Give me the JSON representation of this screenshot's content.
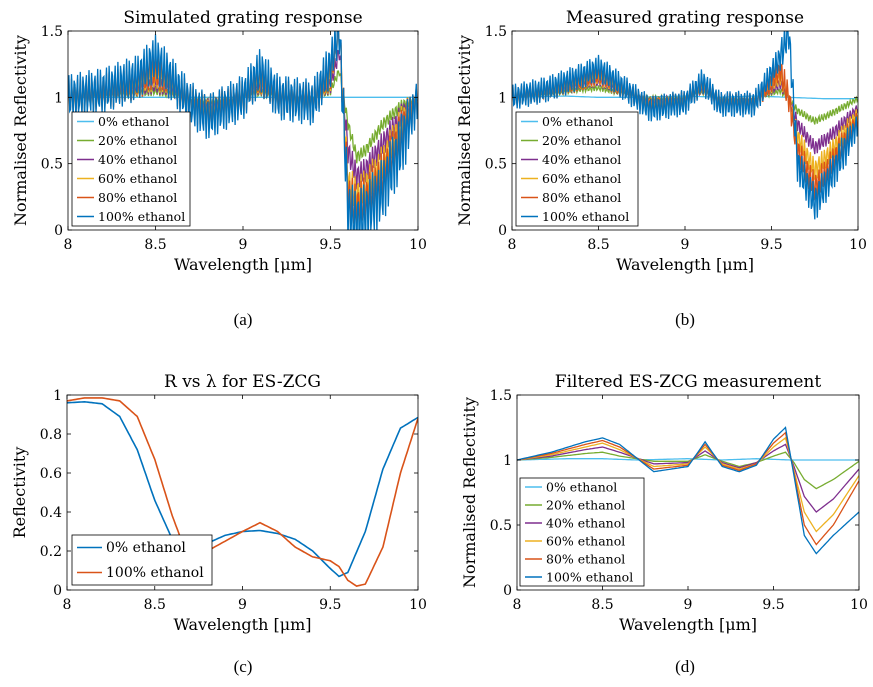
{
  "colors": {
    "s0": "#4DBEEE",
    "s20": "#77AC30",
    "s40": "#7E2F8E",
    "s60": "#EDB120",
    "s80": "#D95319",
    "s100": "#0072BD"
  },
  "chart_data": [
    {
      "type": "line",
      "id": "a",
      "caption": "(a)",
      "title": "Simulated grating response",
      "xlabel": "Wavelength [μm]",
      "ylabel": "Normalised Reflectivity",
      "xlim": [
        8,
        10
      ],
      "ylim": [
        0,
        1.5
      ],
      "xticks": [
        "8",
        "8.5",
        "9",
        "9.5",
        "10"
      ],
      "yticks": [
        "0",
        "0.5",
        "1",
        "1.5"
      ],
      "legend_position": "bottom-left",
      "series": [
        {
          "name": "0% ethanol",
          "color": "s0",
          "x": [
            8,
            8.2,
            8.4,
            8.6,
            8.8,
            9,
            9.2,
            9.4,
            9.6,
            9.8,
            10
          ],
          "y": [
            1,
            1,
            1,
            1,
            1,
            1,
            1,
            1,
            1,
            1,
            1
          ]
        },
        {
          "name": "20% ethanol",
          "color": "s20",
          "x": [
            8,
            8.2,
            8.4,
            8.5,
            8.6,
            8.7,
            8.8,
            9,
            9.1,
            9.2,
            9.4,
            9.5,
            9.55,
            9.6,
            9.65,
            9.7,
            9.8,
            9.9,
            10
          ],
          "y": [
            1,
            1.01,
            1.03,
            1.05,
            1.02,
            0.99,
            0.97,
            1,
            1.04,
            1.0,
            1.0,
            1.05,
            1.2,
            0.8,
            0.55,
            0.6,
            0.8,
            0.93,
            1
          ]
        },
        {
          "name": "40% ethanol",
          "color": "s40",
          "x": [
            8,
            8.2,
            8.4,
            8.5,
            8.6,
            8.7,
            8.8,
            9,
            9.1,
            9.2,
            9.4,
            9.5,
            9.55,
            9.6,
            9.65,
            9.7,
            9.8,
            9.9,
            10
          ],
          "y": [
            1,
            1.02,
            1.06,
            1.1,
            1.05,
            0.98,
            0.94,
            1,
            1.08,
            1.0,
            0.99,
            1.1,
            1.35,
            0.6,
            0.4,
            0.45,
            0.65,
            0.85,
            1
          ]
        },
        {
          "name": "60% ethanol",
          "color": "s60",
          "x": [
            8,
            8.2,
            8.4,
            8.5,
            8.6,
            8.7,
            8.8,
            9,
            9.1,
            9.2,
            9.4,
            9.5,
            9.55,
            9.6,
            9.65,
            9.7,
            9.8,
            9.9,
            10
          ],
          "y": [
            1,
            1.03,
            1.09,
            1.16,
            1.08,
            0.97,
            0.91,
            1,
            1.12,
            1.0,
            0.98,
            1.15,
            1.5,
            0.35,
            0.25,
            0.32,
            0.5,
            0.78,
            1
          ]
        },
        {
          "name": "80% ethanol",
          "color": "s80",
          "x": [
            8,
            8.2,
            8.4,
            8.5,
            8.6,
            8.7,
            8.8,
            9,
            9.1,
            9.2,
            9.4,
            9.5,
            9.55,
            9.6,
            9.65,
            9.7,
            9.8,
            9.9,
            10
          ],
          "y": [
            1,
            1.04,
            1.12,
            1.22,
            1.1,
            0.96,
            0.88,
            1,
            1.16,
            1.0,
            0.97,
            1.2,
            1.5,
            0.25,
            0.15,
            0.22,
            0.4,
            0.7,
            1
          ]
        },
        {
          "name": "100% ethanol",
          "color": "s100",
          "x": [
            8,
            8.2,
            8.4,
            8.5,
            8.6,
            8.7,
            8.8,
            9,
            9.1,
            9.2,
            9.4,
            9.5,
            9.55,
            9.6,
            9.65,
            9.7,
            9.8,
            9.9,
            10
          ],
          "y": [
            1,
            1.05,
            1.15,
            1.3,
            1.12,
            0.95,
            0.85,
            1,
            1.2,
            1.0,
            0.96,
            1.25,
            1.5,
            0.15,
            0.05,
            0.12,
            0.3,
            0.62,
            1
          ]
        }
      ]
    },
    {
      "type": "line",
      "id": "b",
      "caption": "(b)",
      "title": "Measured grating response",
      "xlabel": "Wavelength [μm]",
      "ylabel": "Normalised Reflectivity",
      "xlim": [
        8,
        10
      ],
      "ylim": [
        0,
        1.5
      ],
      "xticks": [
        "8",
        "8.5",
        "9",
        "9.5",
        "10"
      ],
      "yticks": [
        "0",
        "0.5",
        "1",
        "1.5"
      ],
      "legend_position": "bottom-left",
      "series": [
        {
          "name": "0% ethanol",
          "color": "s0",
          "x": [
            8,
            8.3,
            8.5,
            8.7,
            9,
            9.2,
            9.4,
            9.6,
            9.8,
            10
          ],
          "y": [
            1,
            1.01,
            1.0,
            1.0,
            1.01,
            1.0,
            1.01,
            1.0,
            0.99,
            0.99
          ]
        },
        {
          "name": "20% ethanol",
          "color": "s20",
          "x": [
            8,
            8.2,
            8.4,
            8.5,
            8.6,
            8.8,
            9,
            9.1,
            9.2,
            9.4,
            9.55,
            9.6,
            9.65,
            9.75,
            9.85,
            10
          ],
          "y": [
            1,
            1.02,
            1.06,
            1.07,
            1.04,
            0.99,
            1.0,
            1.04,
            0.99,
            0.99,
            1.05,
            1.0,
            0.9,
            0.82,
            0.88,
            0.99
          ]
        },
        {
          "name": "40% ethanol",
          "color": "s40",
          "x": [
            8,
            8.2,
            8.4,
            8.5,
            8.6,
            8.8,
            9,
            9.1,
            9.2,
            9.4,
            9.55,
            9.6,
            9.65,
            9.75,
            9.85,
            10
          ],
          "y": [
            1,
            1.03,
            1.09,
            1.12,
            1.06,
            0.97,
            0.99,
            1.06,
            0.98,
            0.98,
            1.1,
            1.0,
            0.8,
            0.62,
            0.72,
            0.92
          ]
        },
        {
          "name": "60% ethanol",
          "color": "s60",
          "x": [
            8,
            8.2,
            8.4,
            8.5,
            8.6,
            8.8,
            9,
            9.1,
            9.2,
            9.4,
            9.55,
            9.6,
            9.65,
            9.75,
            9.85,
            10
          ],
          "y": [
            1,
            1.04,
            1.11,
            1.15,
            1.08,
            0.95,
            0.98,
            1.08,
            0.97,
            0.97,
            1.15,
            1.0,
            0.7,
            0.45,
            0.6,
            0.88
          ]
        },
        {
          "name": "80% ethanol",
          "color": "s80",
          "x": [
            8,
            8.2,
            8.4,
            8.5,
            8.6,
            8.8,
            9,
            9.1,
            9.2,
            9.4,
            9.55,
            9.6,
            9.65,
            9.75,
            9.85,
            10
          ],
          "y": [
            1,
            1.05,
            1.13,
            1.18,
            1.1,
            0.93,
            0.97,
            1.1,
            0.96,
            0.96,
            1.2,
            1.0,
            0.6,
            0.32,
            0.5,
            0.84
          ]
        },
        {
          "name": "100% ethanol",
          "color": "s100",
          "x": [
            8,
            8.2,
            8.4,
            8.5,
            8.6,
            8.8,
            9,
            9.1,
            9.2,
            9.4,
            9.55,
            9.6,
            9.65,
            9.75,
            9.85,
            10
          ],
          "y": [
            1,
            1.06,
            1.16,
            1.22,
            1.12,
            0.91,
            0.96,
            1.12,
            0.95,
            0.95,
            1.3,
            1.5,
            0.5,
            0.2,
            0.42,
            0.8
          ]
        }
      ]
    },
    {
      "type": "line",
      "id": "c",
      "caption": "(c)",
      "title": "R vs λ for ES-ZCG",
      "xlabel": "Wavelength [μm]",
      "ylabel": "Reflectivity",
      "xlim": [
        8,
        10
      ],
      "ylim": [
        0,
        1
      ],
      "xticks": [
        "8",
        "8.5",
        "9",
        "9.5",
        "10"
      ],
      "yticks": [
        "0",
        "0.2",
        "0.4",
        "0.6",
        "0.8",
        "1"
      ],
      "legend_position": "bottom-left",
      "series": [
        {
          "name": "0% ethanol",
          "color": "s100",
          "x": [
            8,
            8.1,
            8.2,
            8.3,
            8.4,
            8.5,
            8.6,
            8.7,
            8.8,
            8.9,
            9,
            9.1,
            9.2,
            9.3,
            9.4,
            9.5,
            9.55,
            9.6,
            9.7,
            9.8,
            9.9,
            10
          ],
          "y": [
            0.96,
            0.965,
            0.955,
            0.89,
            0.72,
            0.46,
            0.26,
            0.21,
            0.24,
            0.28,
            0.3,
            0.305,
            0.29,
            0.26,
            0.2,
            0.11,
            0.07,
            0.09,
            0.3,
            0.62,
            0.83,
            0.885
          ]
        },
        {
          "name": "100% ethanol",
          "color": "s80",
          "x": [
            8,
            8.1,
            8.2,
            8.3,
            8.4,
            8.5,
            8.6,
            8.65,
            8.7,
            8.8,
            8.9,
            9,
            9.1,
            9.2,
            9.3,
            9.4,
            9.5,
            9.55,
            9.6,
            9.65,
            9.7,
            9.8,
            9.9,
            10
          ],
          "y": [
            0.97,
            0.985,
            0.985,
            0.97,
            0.89,
            0.67,
            0.38,
            0.26,
            0.2,
            0.2,
            0.25,
            0.3,
            0.345,
            0.3,
            0.22,
            0.17,
            0.15,
            0.12,
            0.05,
            0.02,
            0.03,
            0.22,
            0.6,
            0.88
          ]
        }
      ]
    },
    {
      "type": "line",
      "id": "d",
      "caption": "(d)",
      "title": "Filtered ES-ZCG measurement",
      "xlabel": "Wavelength [μm]",
      "ylabel": "Normalised Reflectivity",
      "xlim": [
        8,
        10
      ],
      "ylim": [
        0,
        1.5
      ],
      "xticks": [
        "8",
        "8.5",
        "9",
        "9.5",
        "10"
      ],
      "yticks": [
        "0",
        "0.5",
        "1",
        "1.5"
      ],
      "legend_position": "bottom-left",
      "series": [
        {
          "name": "0% ethanol",
          "color": "s0",
          "x": [
            8,
            8.3,
            8.5,
            8.7,
            9,
            9.2,
            9.4,
            9.6,
            9.8,
            10
          ],
          "y": [
            1,
            1.01,
            1.01,
            1.0,
            1.01,
            1.0,
            1.01,
            1.0,
            1.0,
            1.0
          ]
        },
        {
          "name": "20% ethanol",
          "color": "s20",
          "x": [
            8,
            8.2,
            8.4,
            8.5,
            8.6,
            8.8,
            9,
            9.1,
            9.2,
            9.3,
            9.4,
            9.5,
            9.57,
            9.62,
            9.68,
            9.75,
            9.85,
            10
          ],
          "y": [
            1,
            1.02,
            1.05,
            1.06,
            1.03,
            0.99,
            0.99,
            1.04,
            0.99,
            0.95,
            0.98,
            1.03,
            1.06,
            0.98,
            0.85,
            0.78,
            0.85,
            0.99
          ]
        },
        {
          "name": "40% ethanol",
          "color": "s40",
          "x": [
            8,
            8.2,
            8.4,
            8.5,
            8.6,
            8.8,
            9,
            9.1,
            9.2,
            9.3,
            9.4,
            9.5,
            9.57,
            9.62,
            9.68,
            9.75,
            9.85,
            10
          ],
          "y": [
            1,
            1.03,
            1.08,
            1.1,
            1.06,
            0.97,
            0.98,
            1.07,
            0.98,
            0.94,
            0.98,
            1.07,
            1.12,
            0.95,
            0.72,
            0.6,
            0.7,
            0.93
          ]
        },
        {
          "name": "60% ethanol",
          "color": "s60",
          "x": [
            8,
            8.2,
            8.4,
            8.5,
            8.6,
            8.8,
            9,
            9.1,
            9.2,
            9.3,
            9.4,
            9.5,
            9.57,
            9.62,
            9.68,
            9.75,
            9.85,
            10
          ],
          "y": [
            1,
            1.04,
            1.1,
            1.13,
            1.08,
            0.95,
            0.97,
            1.1,
            0.97,
            0.93,
            0.97,
            1.1,
            1.17,
            0.92,
            0.6,
            0.45,
            0.58,
            0.88
          ]
        },
        {
          "name": "80% ethanol",
          "color": "s80",
          "x": [
            8,
            8.2,
            8.4,
            8.5,
            8.6,
            8.8,
            9,
            9.1,
            9.2,
            9.3,
            9.4,
            9.5,
            9.57,
            9.62,
            9.68,
            9.75,
            9.85,
            10
          ],
          "y": [
            1,
            1.05,
            1.12,
            1.15,
            1.1,
            0.93,
            0.96,
            1.12,
            0.96,
            0.92,
            0.97,
            1.13,
            1.21,
            0.9,
            0.5,
            0.35,
            0.5,
            0.84
          ]
        },
        {
          "name": "100% ethanol",
          "color": "s100",
          "x": [
            8,
            8.2,
            8.4,
            8.5,
            8.6,
            8.8,
            9,
            9.1,
            9.2,
            9.3,
            9.4,
            9.5,
            9.57,
            9.62,
            9.68,
            9.75,
            9.85,
            10
          ],
          "y": [
            1,
            1.06,
            1.14,
            1.17,
            1.12,
            0.91,
            0.95,
            1.14,
            0.95,
            0.91,
            0.96,
            1.16,
            1.25,
            0.88,
            0.42,
            0.28,
            0.42,
            0.6
          ]
        }
      ]
    }
  ]
}
